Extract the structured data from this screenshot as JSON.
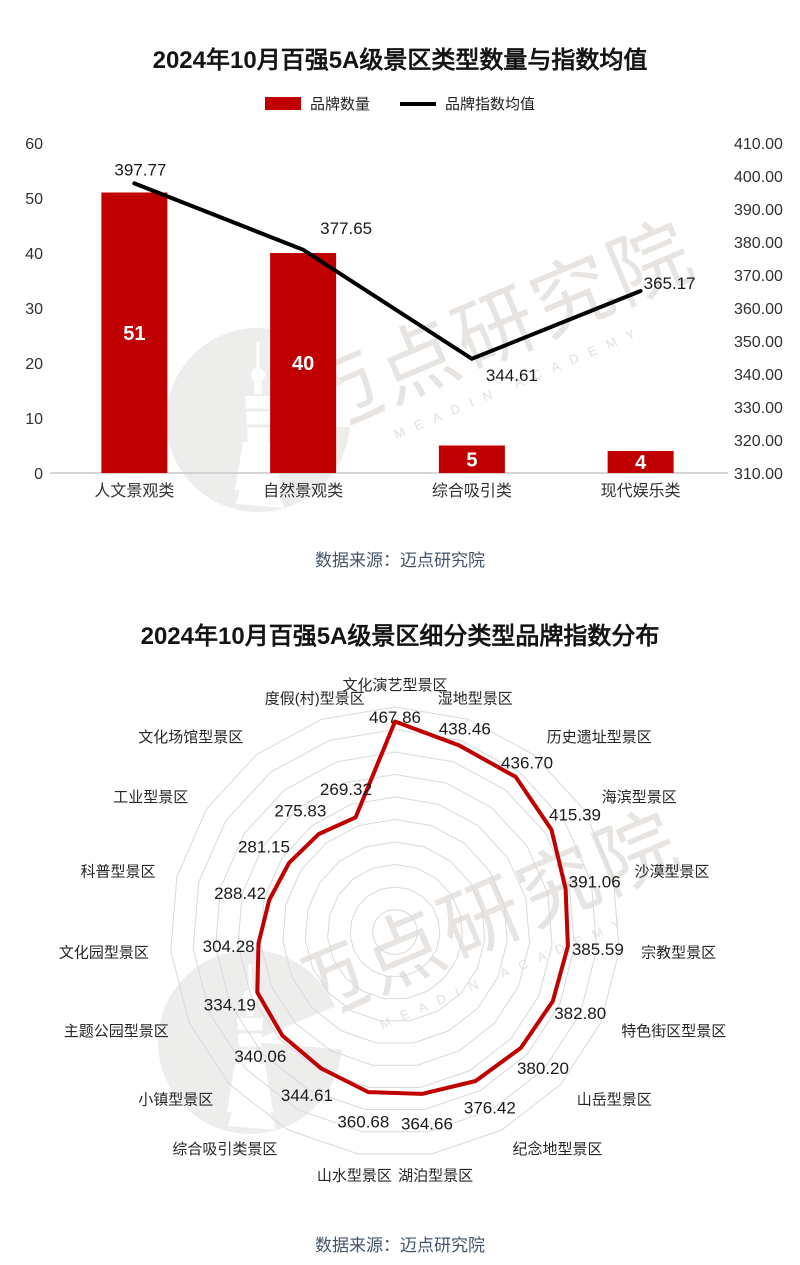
{
  "watermark": {
    "text": "迈点研究院",
    "subtext": "MEADIN ACADEMY"
  },
  "chart_data": [
    {
      "type": "bar",
      "title": "2024年10月百强5A级景区类型数量与指数均值",
      "categories": [
        "人文景观类",
        "自然景观类",
        "综合吸引类",
        "现代娱乐类"
      ],
      "series": [
        {
          "name": "品牌数量",
          "type": "bar",
          "axis": "left",
          "color": "#c00000",
          "values": [
            51,
            40,
            5,
            4
          ]
        },
        {
          "name": "品牌指数均值",
          "type": "line",
          "axis": "right",
          "color": "#000000",
          "values": [
            397.77,
            377.65,
            344.61,
            365.17
          ]
        }
      ],
      "left_axis": {
        "min": 0,
        "max": 60,
        "ticks": [
          60,
          50,
          40,
          30,
          20,
          10,
          0
        ]
      },
      "right_axis": {
        "min": 310,
        "max": 410,
        "ticks": [
          "410.00",
          "400.00",
          "390.00",
          "380.00",
          "370.00",
          "360.00",
          "350.00",
          "340.00",
          "330.00",
          "320.00",
          "310.00"
        ]
      },
      "legend_position": "top",
      "grid": false,
      "source": "数据来源：迈点研究院"
    },
    {
      "type": "radar",
      "title": "2024年10月百强5A级景区细分类型品牌指数分布",
      "categories": [
        "文化演艺型景区",
        "湿地型景区",
        "历史遗址型景区",
        "海滨型景区",
        "沙漠型景区",
        "宗教型景区",
        "特色街区型景区",
        "山岳型景区",
        "纪念地型景区",
        "湖泊型景区",
        "山水型景区",
        "综合吸引类景区",
        "小镇型景区",
        "主题公园型景区",
        "文化园型景区",
        "科普型景区",
        "工业型景区",
        "文化场馆型景区",
        "度假(村)型景区"
      ],
      "series": [
        {
          "name": "品牌指数",
          "color": "#c00000",
          "values": [
            467.86,
            438.46,
            436.7,
            415.39,
            391.06,
            385.59,
            382.8,
            380.2,
            376.42,
            364.66,
            360.68,
            344.61,
            340.06,
            334.19,
            304.28,
            288.42,
            281.15,
            275.83,
            269.32
          ]
        }
      ],
      "axis": {
        "min": 0,
        "max": 500,
        "ring_step": 50
      },
      "grid": "polygon-rings",
      "source": "数据来源：迈点研究院"
    }
  ]
}
